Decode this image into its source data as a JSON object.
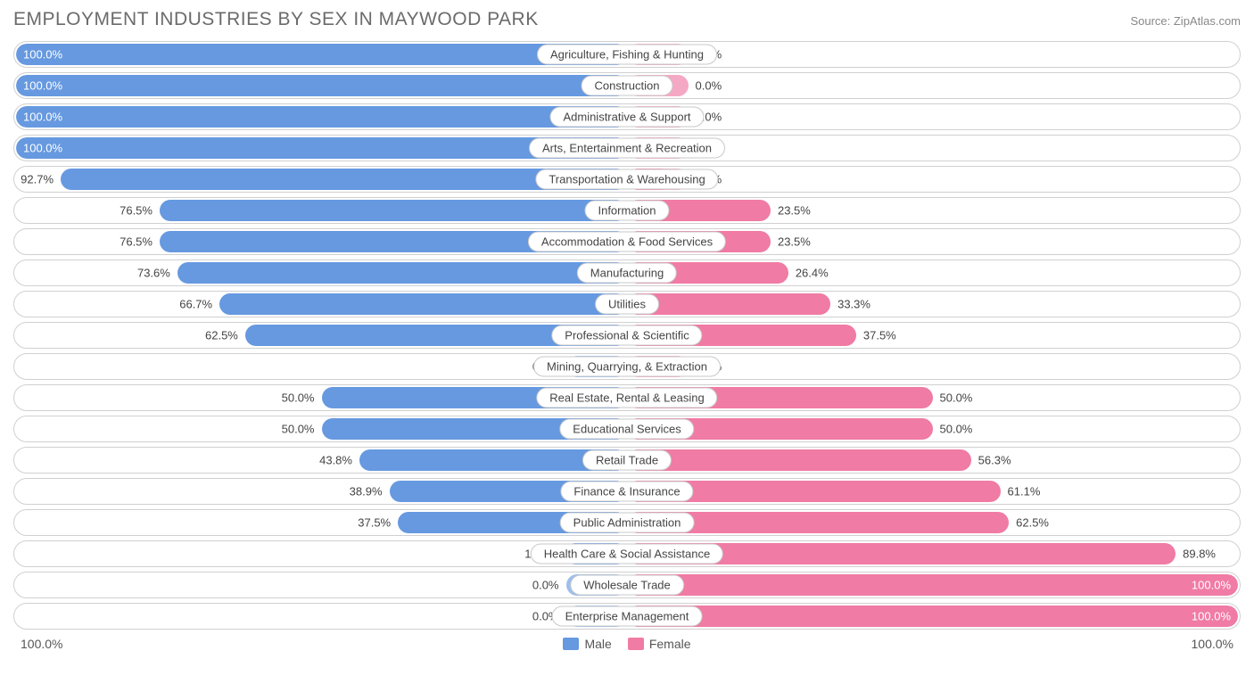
{
  "header": {
    "title": "EMPLOYMENT INDUSTRIES BY SEX IN MAYWOOD PARK",
    "source": "Source: ZipAtlas.com"
  },
  "chart": {
    "type": "diverging-bar",
    "axis_left": "100.0%",
    "axis_right": "100.0%",
    "colors": {
      "male_primary": "#6699e0",
      "male_secondary": "#9dbeed",
      "female_primary": "#f07ba4",
      "female_secondary": "#f5a8c3",
      "row_border": "#d0d0d0",
      "pill_border": "#c8c8c8",
      "background": "#ffffff",
      "text": "#444444",
      "title_text": "#6b6b6b"
    },
    "secondary_stub_pct": 10,
    "legend": {
      "male": "Male",
      "female": "Female"
    },
    "rows": [
      {
        "category": "Agriculture, Fishing & Hunting",
        "male": 100.0,
        "female": 0.0
      },
      {
        "category": "Construction",
        "male": 100.0,
        "female": 0.0
      },
      {
        "category": "Administrative & Support",
        "male": 100.0,
        "female": 0.0
      },
      {
        "category": "Arts, Entertainment & Recreation",
        "male": 100.0,
        "female": 0.0
      },
      {
        "category": "Transportation & Warehousing",
        "male": 92.7,
        "female": 7.3
      },
      {
        "category": "Information",
        "male": 76.5,
        "female": 23.5
      },
      {
        "category": "Accommodation & Food Services",
        "male": 76.5,
        "female": 23.5
      },
      {
        "category": "Manufacturing",
        "male": 73.6,
        "female": 26.4
      },
      {
        "category": "Utilities",
        "male": 66.7,
        "female": 33.3
      },
      {
        "category": "Professional & Scientific",
        "male": 62.5,
        "female": 37.5
      },
      {
        "category": "Mining, Quarrying, & Extraction",
        "male": 0.0,
        "female": 0.0
      },
      {
        "category": "Real Estate, Rental & Leasing",
        "male": 50.0,
        "female": 50.0
      },
      {
        "category": "Educational Services",
        "male": 50.0,
        "female": 50.0
      },
      {
        "category": "Retail Trade",
        "male": 43.8,
        "female": 56.3
      },
      {
        "category": "Finance & Insurance",
        "male": 38.9,
        "female": 61.1
      },
      {
        "category": "Public Administration",
        "male": 37.5,
        "female": 62.5
      },
      {
        "category": "Health Care & Social Assistance",
        "male": 10.2,
        "female": 89.8
      },
      {
        "category": "Wholesale Trade",
        "male": 0.0,
        "female": 100.0
      },
      {
        "category": "Enterprise Management",
        "male": 0.0,
        "female": 100.0
      }
    ]
  }
}
